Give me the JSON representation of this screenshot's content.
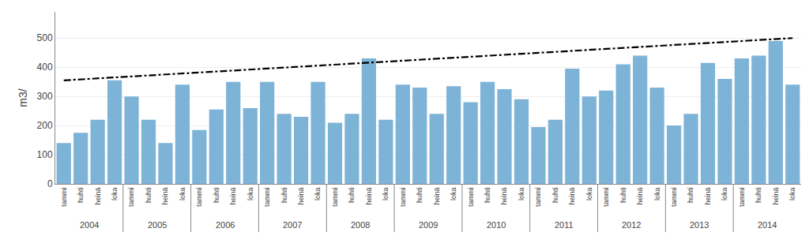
{
  "chart_data": {
    "type": "bar",
    "ylabel": "m3/",
    "categories": [
      "tammi",
      "huhti",
      "heinä",
      "loka",
      "tammi",
      "huhti",
      "heinä",
      "loka",
      "tammi",
      "huhti",
      "heinä",
      "loka",
      "tammi",
      "huhti",
      "heinä",
      "loka",
      "tammi",
      "huhti",
      "heinä",
      "loka",
      "tammi",
      "huhti",
      "heinä",
      "loka",
      "tammi",
      "huhti",
      "heinä",
      "loka",
      "tammi",
      "huhti",
      "heinä",
      "loka",
      "tammi",
      "huhti",
      "heinä",
      "loka",
      "tammi",
      "huhti",
      "heinä",
      "loka",
      "tammi",
      "huhti",
      "heinä",
      "loka"
    ],
    "series": [
      {
        "type": "bar",
        "color": "#7EB3D8",
        "values": [
          140,
          175,
          220,
          355,
          300,
          220,
          140,
          340,
          185,
          255,
          350,
          260,
          350,
          240,
          230,
          350,
          210,
          240,
          430,
          220,
          340,
          330,
          240,
          335,
          280,
          350,
          325,
          290,
          195,
          220,
          395,
          300,
          320,
          410,
          440,
          330,
          200,
          240,
          415,
          360,
          430,
          440,
          490,
          340
        ]
      },
      {
        "type": "line",
        "color": "#000000",
        "line_style": "dashdot",
        "values": [
          355,
          null,
          null,
          null,
          null,
          null,
          null,
          null,
          null,
          null,
          null,
          null,
          null,
          null,
          null,
          null,
          null,
          null,
          null,
          null,
          null,
          null,
          null,
          null,
          null,
          null,
          null,
          null,
          null,
          null,
          null,
          null,
          null,
          null,
          null,
          null,
          null,
          null,
          null,
          null,
          null,
          null,
          null,
          500
        ]
      }
    ],
    "annotations": [
      "2004",
      "2005",
      "2006",
      "2007",
      "2008",
      "2009",
      "2010",
      "2011",
      "2012",
      "2013",
      "2014"
    ],
    "ylim": [
      0,
      590
    ],
    "yticks": [
      0,
      100,
      200,
      300,
      400,
      500
    ],
    "grid": true
  }
}
